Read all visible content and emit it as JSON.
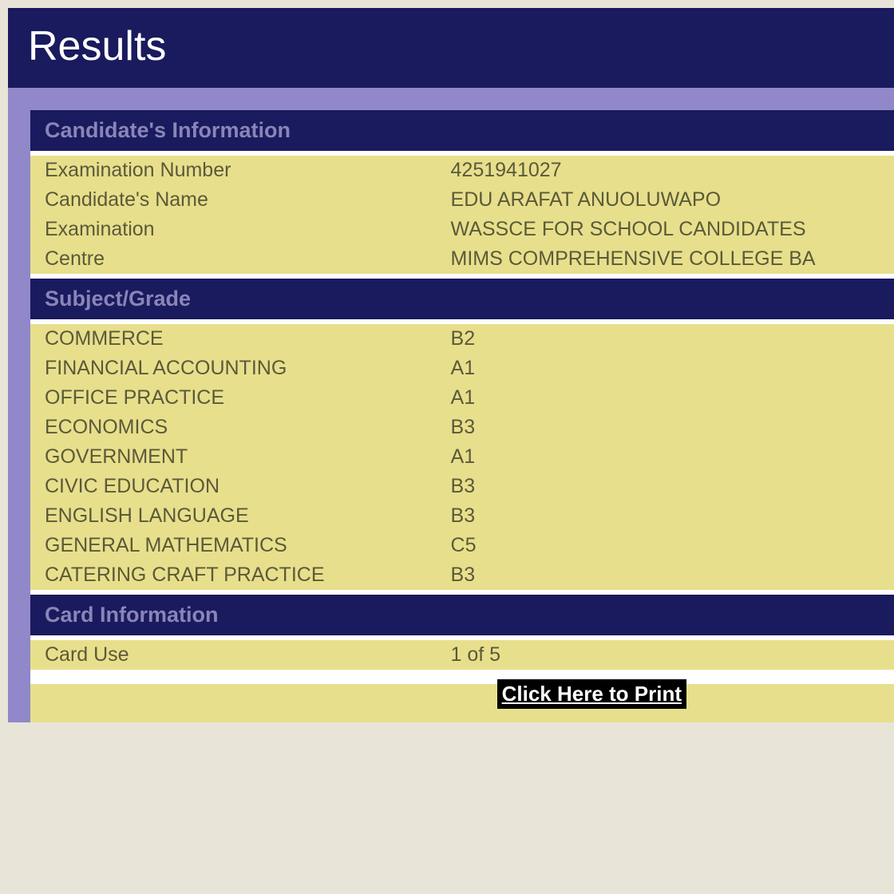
{
  "header": {
    "title": "Results"
  },
  "colors": {
    "header_bg": "#1a1a5e",
    "header_text": "#ffffff",
    "content_border": "#9088c8",
    "section_header_bg": "#1a1a5e",
    "section_header_text": "#8a85b8",
    "row_bg": "#e8df8c",
    "row_text": "#5a5a3a",
    "print_bg": "#000000",
    "print_text": "#ffffff"
  },
  "sections": {
    "candidate_info": {
      "title": "Candidate's Information",
      "rows": [
        {
          "label": "Examination Number",
          "value": "4251941027"
        },
        {
          "label": "Candidate's Name",
          "value": "EDU ARAFAT ANUOLUWAPO"
        },
        {
          "label": "Examination",
          "value": "WASSCE FOR SCHOOL CANDIDATES"
        },
        {
          "label": "Centre",
          "value": "MIMS COMPREHENSIVE COLLEGE BA"
        }
      ]
    },
    "subject_grade": {
      "title": "Subject/Grade",
      "rows": [
        {
          "label": "COMMERCE",
          "value": "B2"
        },
        {
          "label": "FINANCIAL ACCOUNTING",
          "value": "A1"
        },
        {
          "label": "OFFICE PRACTICE",
          "value": "A1"
        },
        {
          "label": "ECONOMICS",
          "value": "B3"
        },
        {
          "label": "GOVERNMENT",
          "value": "A1"
        },
        {
          "label": "CIVIC EDUCATION",
          "value": "B3"
        },
        {
          "label": "ENGLISH LANGUAGE",
          "value": "B3"
        },
        {
          "label": "GENERAL MATHEMATICS",
          "value": "C5"
        },
        {
          "label": "CATERING CRAFT PRACTICE",
          "value": "B3"
        }
      ]
    },
    "card_info": {
      "title": "Card Information",
      "rows": [
        {
          "label": "Card Use",
          "value": "1 of 5"
        }
      ]
    }
  },
  "print_link": {
    "label": "Click Here to Print"
  }
}
